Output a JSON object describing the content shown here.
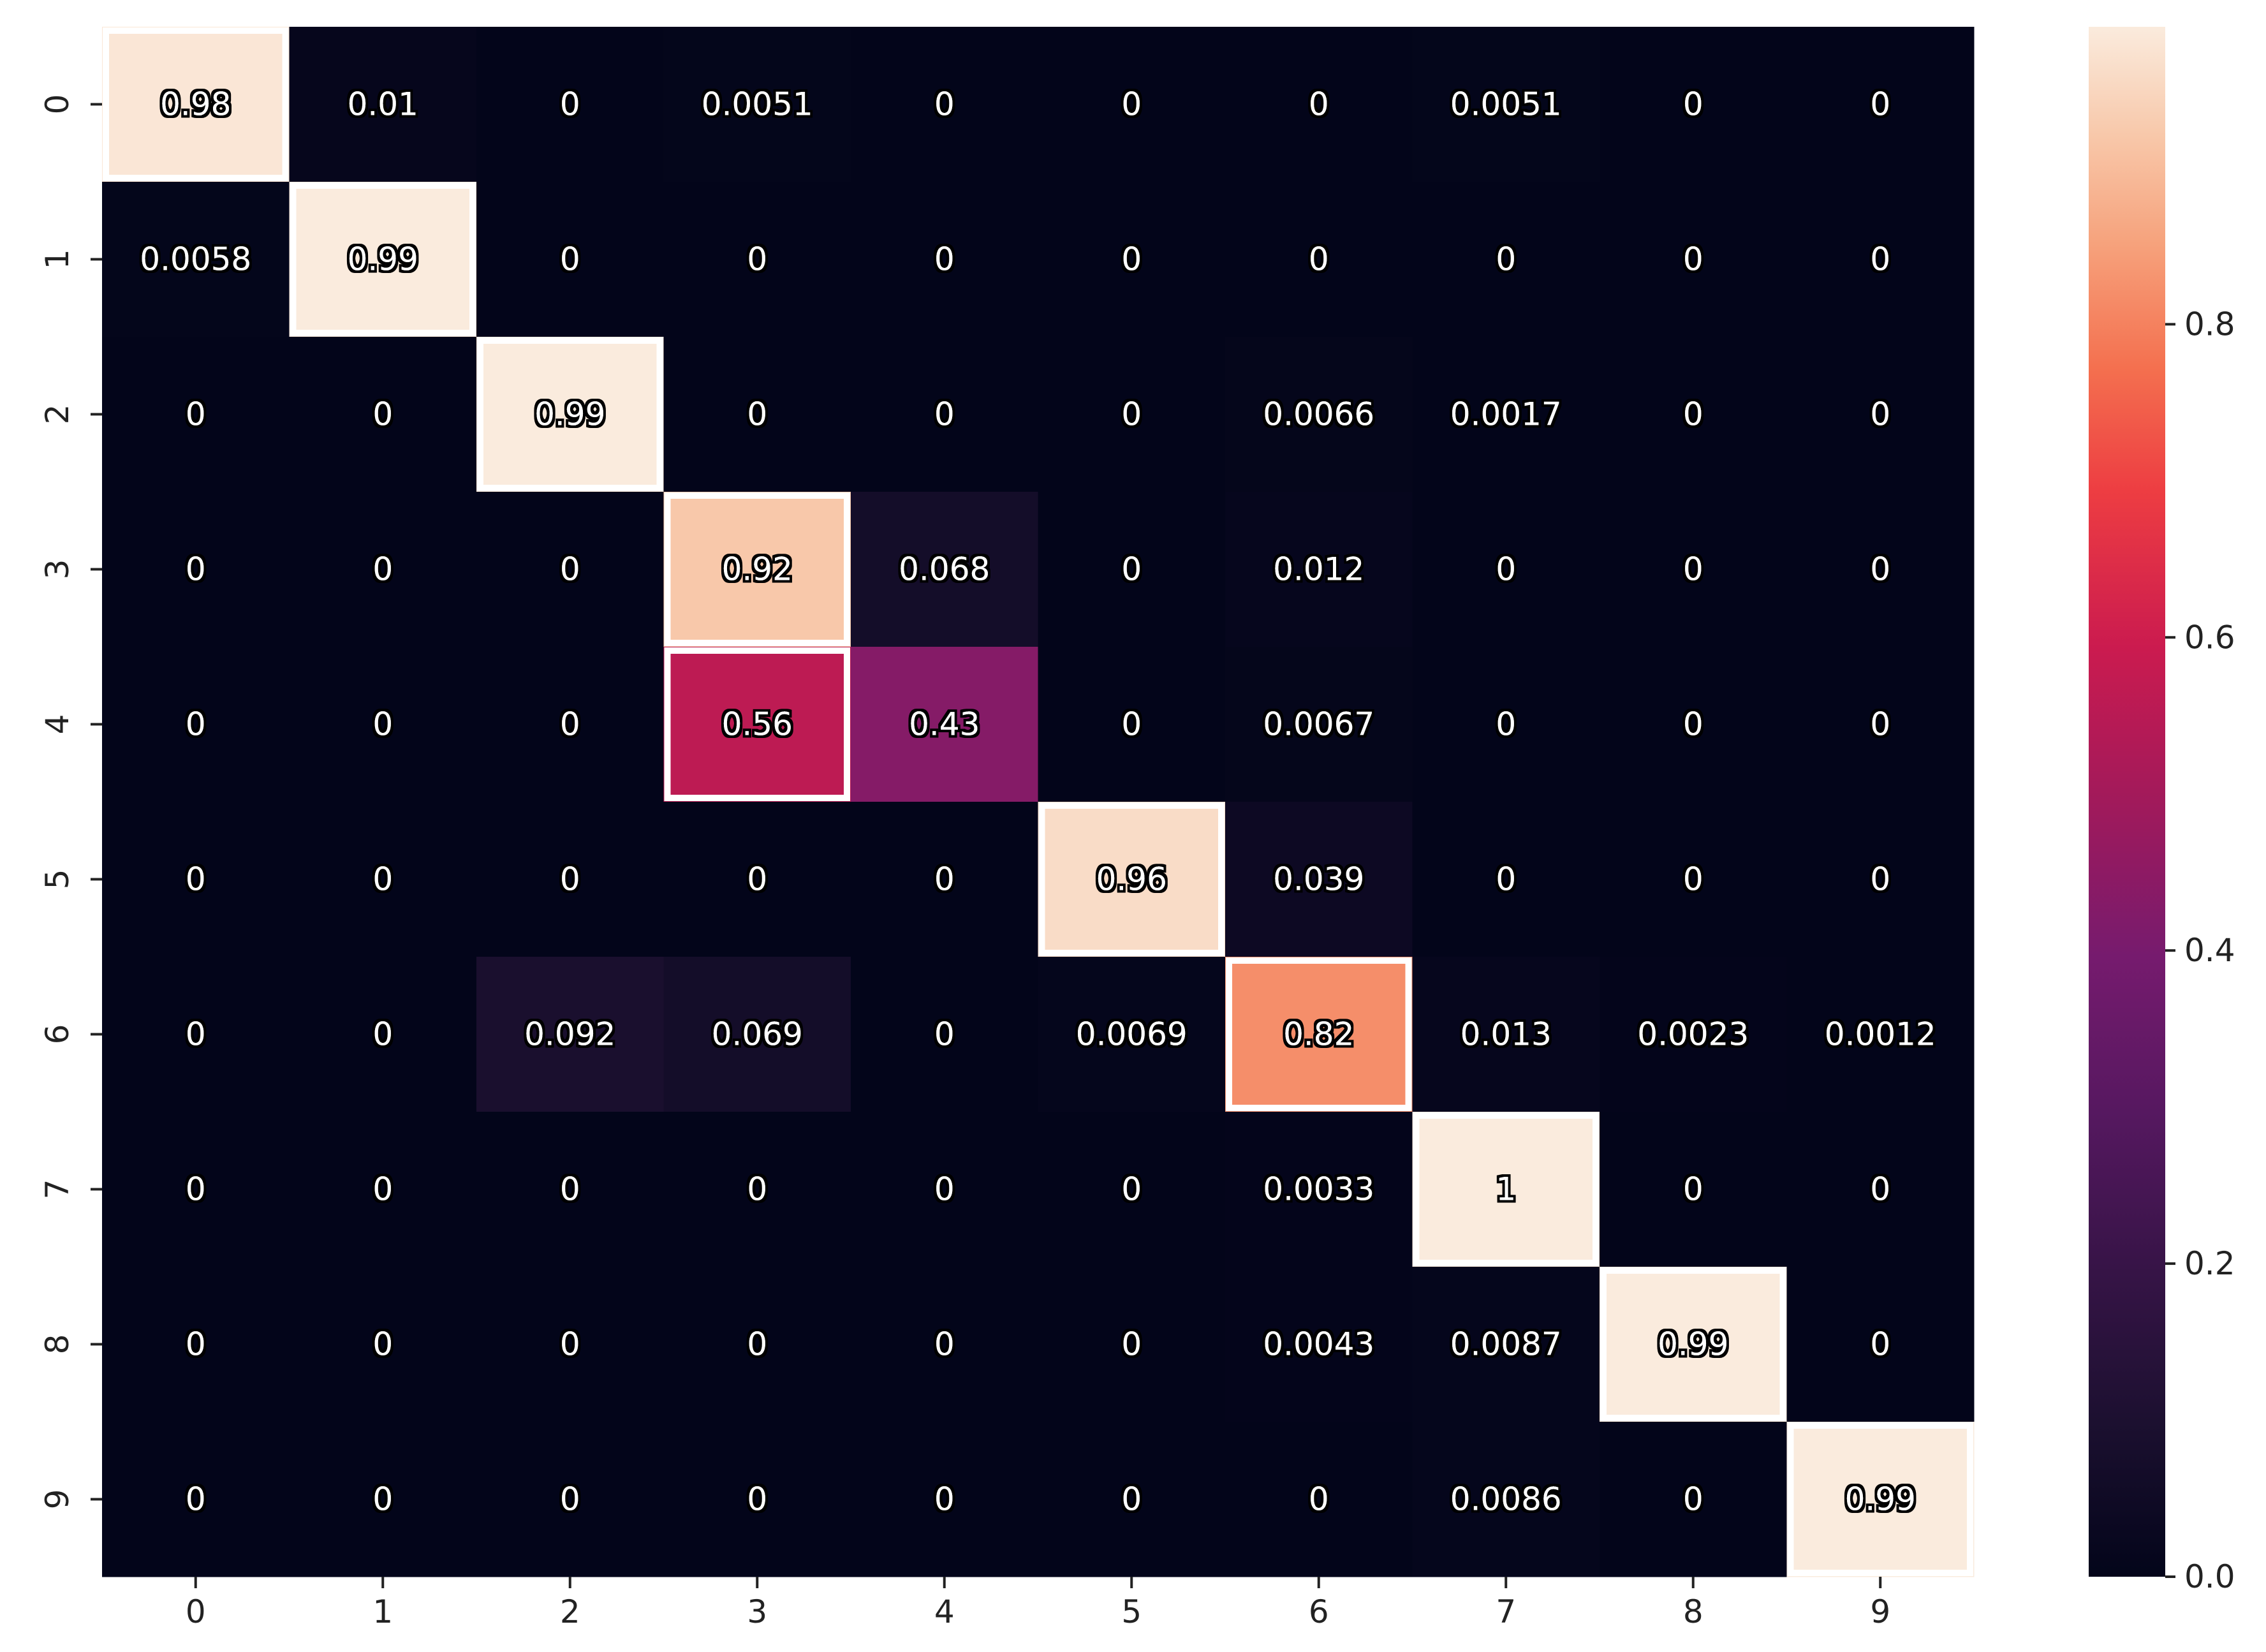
{
  "chart_data": {
    "type": "heatmap",
    "x_categories": [
      "0",
      "1",
      "2",
      "3",
      "4",
      "5",
      "6",
      "7",
      "8",
      "9"
    ],
    "y_categories": [
      "0",
      "1",
      "2",
      "3",
      "4",
      "5",
      "6",
      "7",
      "8",
      "9"
    ],
    "matrix": [
      [
        0.98,
        0.01,
        0,
        0.0051,
        0,
        0,
        0,
        0.0051,
        0,
        0
      ],
      [
        0.0058,
        0.99,
        0,
        0,
        0,
        0,
        0,
        0,
        0,
        0
      ],
      [
        0,
        0,
        0.99,
        0,
        0,
        0,
        0.0066,
        0.0017,
        0,
        0
      ],
      [
        0,
        0,
        0,
        0.92,
        0.068,
        0,
        0.012,
        0,
        0,
        0
      ],
      [
        0,
        0,
        0,
        0.56,
        0.43,
        0,
        0.0067,
        0,
        0,
        0
      ],
      [
        0,
        0,
        0,
        0,
        0,
        0.96,
        0.039,
        0,
        0,
        0
      ],
      [
        0,
        0,
        0.092,
        0.069,
        0,
        0.0069,
        0.82,
        0.013,
        0.0023,
        0.0012
      ],
      [
        0,
        0,
        0,
        0,
        0,
        0,
        0.0033,
        1,
        0,
        0
      ],
      [
        0,
        0,
        0,
        0,
        0,
        0,
        0.0043,
        0.0087,
        0.99,
        0
      ],
      [
        0,
        0,
        0,
        0,
        0,
        0,
        0,
        0.0086,
        0,
        0.99
      ]
    ],
    "cell_labels": [
      [
        "0.98",
        "0.01",
        "0",
        "0.0051",
        "0",
        "0",
        "0",
        "0.0051",
        "0",
        "0"
      ],
      [
        "0.0058",
        "0.99",
        "0",
        "0",
        "0",
        "0",
        "0",
        "0",
        "0",
        "0"
      ],
      [
        "0",
        "0",
        "0.99",
        "0",
        "0",
        "0",
        "0.0066",
        "0.0017",
        "0",
        "0"
      ],
      [
        "0",
        "0",
        "0",
        "0.92",
        "0.068",
        "0",
        "0.012",
        "0",
        "0",
        "0"
      ],
      [
        "0",
        "0",
        "0",
        "0.56",
        "0.43",
        "0",
        "0.0067",
        "0",
        "0",
        "0"
      ],
      [
        "0",
        "0",
        "0",
        "0",
        "0",
        "0.96",
        "0.039",
        "0",
        "0",
        "0"
      ],
      [
        "0",
        "0",
        "0.092",
        "0.069",
        "0",
        "0.0069",
        "0.82",
        "0.013",
        "0.0023",
        "0.0012"
      ],
      [
        "0",
        "0",
        "0",
        "0",
        "0",
        "0",
        "0.0033",
        "1",
        "0",
        "0"
      ],
      [
        "0",
        "0",
        "0",
        "0",
        "0",
        "0",
        "0.0043",
        "0.0087",
        "0.99",
        "0"
      ],
      [
        "0",
        "0",
        "0",
        "0",
        "0",
        "0",
        "0",
        "0.0086",
        "0",
        "0.99"
      ]
    ],
    "colorbar": {
      "range": [
        0,
        0.99
      ],
      "ticks": [
        0.0,
        0.2,
        0.4,
        0.6,
        0.8
      ],
      "tick_labels": [
        "0.0",
        "0.2",
        "0.4",
        "0.6",
        "0.8"
      ],
      "colormap": "rocket",
      "low_color": "#03051a",
      "high_color": "#faebdd"
    },
    "title": "",
    "xlabel": "",
    "ylabel": "",
    "grid": false,
    "legend_position": "right"
  }
}
